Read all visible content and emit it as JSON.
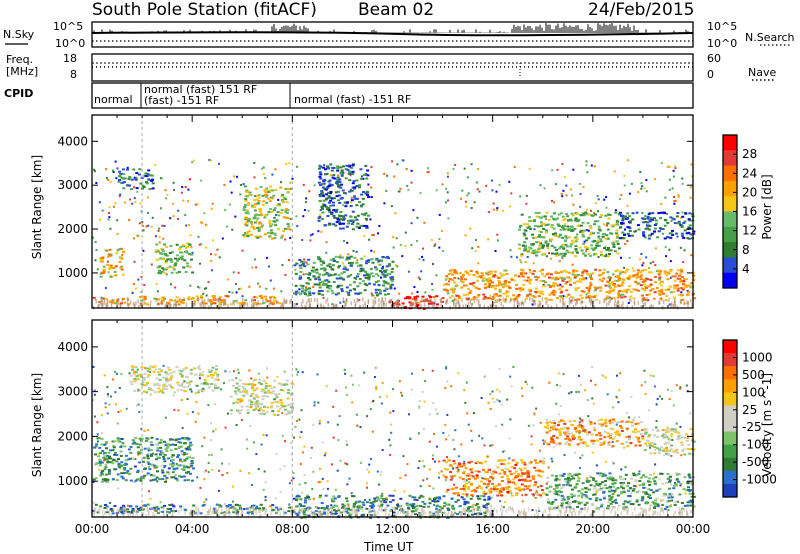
{
  "header": {
    "station": "South Pole Station (fitACF)",
    "beam": "Beam 02",
    "date": "24/Feb/2015"
  },
  "top_panels": {
    "nsky_label": "N.Sky",
    "nsearch_label": "N.Search",
    "nsky_ticks": [
      "10^5",
      "10^0"
    ],
    "nsearch_ticks": [
      "10^5",
      "10^0"
    ],
    "freq_label_1": "Freq.",
    "freq_label_2": "[MHz]",
    "freq_ticks": [
      "18",
      "8"
    ],
    "nave_label": "Nave",
    "nave_ticks": [
      "60",
      "0"
    ],
    "cpid_label": "CPID",
    "cpid_segments": [
      {
        "line1": "normal",
        "line2": ""
      },
      {
        "line1": "normal (fast) 151 RF",
        "line2": "(fast) -151 RF"
      },
      {
        "line1": "normal (fast) -151 RF",
        "line2": ""
      }
    ],
    "nsky_line_color": "#000000"
  },
  "chart_data": [
    {
      "type": "heatmap",
      "quantity": "Power",
      "ylabel": "Slant Range [km]",
      "xlabel": "",
      "y_ticks": [
        1000,
        2000,
        3000,
        4000
      ],
      "ylim": [
        200,
        4600
      ],
      "xlim": [
        0,
        24
      ],
      "colorbar_label": "Power [dB]",
      "colorbar_ticks": [
        4,
        8,
        12,
        16,
        20,
        24,
        28
      ],
      "colorbar_range": [
        0,
        32
      ],
      "colorbar_colors": [
        "#0000ee",
        "#2a4dd6",
        "#2e7d32",
        "#43a047",
        "#66bb6a",
        "#f5c518",
        "#ffa000",
        "#ff6f00",
        "#e53935",
        "#ff0000"
      ],
      "echo_regions": [
        {
          "x0": 0.0,
          "x1": 7.5,
          "y0": 300,
          "y1": 500,
          "level": 0.65
        },
        {
          "x0": 11.8,
          "x1": 14.0,
          "y0": 200,
          "y1": 500,
          "level": 0.97
        },
        {
          "x0": 14.0,
          "x1": 24.0,
          "y0": 400,
          "y1": 1100,
          "level": 0.65
        },
        {
          "x0": 0.3,
          "x1": 1.2,
          "y0": 900,
          "y1": 1600,
          "level": 0.6
        },
        {
          "x0": 2.5,
          "x1": 4.0,
          "y0": 1000,
          "y1": 1700,
          "level": 0.4
        },
        {
          "x0": 1.0,
          "x1": 2.4,
          "y0": 2900,
          "y1": 3400,
          "level": 0.25
        },
        {
          "x0": 6.0,
          "x1": 7.8,
          "y0": 1800,
          "y1": 3000,
          "level": 0.5
        },
        {
          "x0": 8.0,
          "x1": 12.0,
          "y0": 500,
          "y1": 1400,
          "level": 0.3
        },
        {
          "x0": 9.0,
          "x1": 11.0,
          "y0": 2000,
          "y1": 3500,
          "level": 0.2
        },
        {
          "x0": 17.0,
          "x1": 21.0,
          "y0": 1400,
          "y1": 2400,
          "level": 0.4
        },
        {
          "x0": 21.0,
          "x1": 24.0,
          "y0": 1800,
          "y1": 2400,
          "level": 0.2
        }
      ]
    },
    {
      "type": "heatmap",
      "quantity": "Velocity",
      "ylabel": "Slant Range [km]",
      "xlabel": "Time UT",
      "x_ticks": [
        "00:00",
        "04:00",
        "08:00",
        "12:00",
        "16:00",
        "20:00",
        "00:00"
      ],
      "y_ticks": [
        1000,
        2000,
        3000,
        4000
      ],
      "ylim": [
        200,
        4600
      ],
      "xlim": [
        0,
        24
      ],
      "colorbar_label": "Velocity [m s^-1]",
      "colorbar_ticks": [
        "1000",
        "500",
        "100",
        "25",
        "-25",
        "-100",
        "-500",
        "-1000"
      ],
      "colorbar_colors": [
        "#1f3fbf",
        "#2a6fd0",
        "#2e7d32",
        "#43a047",
        "#7cc46a",
        "#cfcfc4",
        "#cfcfc4",
        "#f5c518",
        "#ffa000",
        "#ff6f00",
        "#e53935",
        "#ff0000"
      ],
      "echo_regions": [
        {
          "x0": 0.0,
          "x1": 8.0,
          "y0": 300,
          "y1": 500,
          "level": 0.15
        },
        {
          "x0": 8.0,
          "x1": 16.0,
          "y0": 200,
          "y1": 700,
          "level": 0.2
        },
        {
          "x0": 14.0,
          "x1": 18.0,
          "y0": 700,
          "y1": 1500,
          "level": 0.75
        },
        {
          "x0": 18.0,
          "x1": 24.0,
          "y0": 400,
          "y1": 1200,
          "level": 0.3
        },
        {
          "x0": 1.5,
          "x1": 5.0,
          "y0": 3000,
          "y1": 3600,
          "level": 0.5
        },
        {
          "x0": 5.5,
          "x1": 8.0,
          "y0": 2500,
          "y1": 3300,
          "level": 0.5
        },
        {
          "x0": 0.0,
          "x1": 4.0,
          "y0": 1000,
          "y1": 2000,
          "level": 0.25
        },
        {
          "x0": 18.0,
          "x1": 22.0,
          "y0": 1800,
          "y1": 2400,
          "level": 0.7
        },
        {
          "x0": 22.0,
          "x1": 24.0,
          "y0": 1600,
          "y1": 2200,
          "level": 0.5
        }
      ]
    }
  ]
}
